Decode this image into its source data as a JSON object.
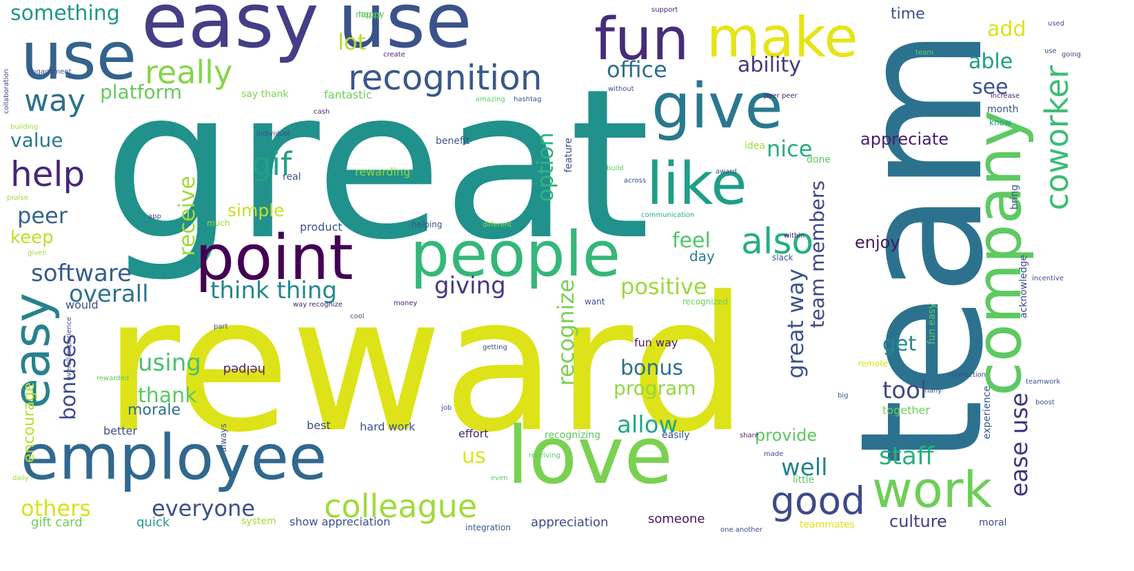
{
  "background": "#ffffff",
  "words": [
    {
      "text": "great",
      "color": "#21918c",
      "rotate": 0
    },
    {
      "text": "reward",
      "color": "#dde318",
      "rotate": 0
    },
    {
      "text": "team",
      "color": "#2c728e",
      "rotate": 90
    },
    {
      "text": "easy",
      "color": "#433e85",
      "rotate": 0
    },
    {
      "text": "use",
      "color": "#3b528b",
      "rotate": 0
    },
    {
      "text": "use",
      "color": "#33638d",
      "rotate": 0
    },
    {
      "text": "fun",
      "color": "#472c7a",
      "rotate": 0
    },
    {
      "text": "make",
      "color": "#e5e419",
      "rotate": 0
    },
    {
      "text": "give",
      "color": "#2a788e",
      "rotate": 0
    },
    {
      "text": "company",
      "color": "#5ec962",
      "rotate": 90
    },
    {
      "text": "people",
      "color": "#35b779",
      "rotate": 0
    },
    {
      "text": "point",
      "color": "#440154",
      "rotate": 0
    },
    {
      "text": "like",
      "color": "#1f9e89",
      "rotate": 0
    },
    {
      "text": "employee",
      "color": "#31688e",
      "rotate": 0
    },
    {
      "text": "love",
      "color": "#7ad151",
      "rotate": 0
    },
    {
      "text": "work",
      "color": "#6ece58",
      "rotate": 0
    },
    {
      "text": "easy",
      "color": "#26828e",
      "rotate": 90
    },
    {
      "text": "recognition",
      "color": "#38588c",
      "rotate": 0
    },
    {
      "text": "really",
      "color": "#86d549",
      "rotate": 0
    },
    {
      "text": "also",
      "color": "#28ae80",
      "rotate": 0
    },
    {
      "text": "good",
      "color": "#3e4a89",
      "rotate": 0
    },
    {
      "text": "colleague",
      "color": "#9fda3a",
      "rotate": 0
    },
    {
      "text": "coworker",
      "color": "#3dbc74",
      "rotate": 90
    },
    {
      "text": "help",
      "color": "#482677",
      "rotate": 0
    },
    {
      "text": "way",
      "color": "#2d708e",
      "rotate": 0
    },
    {
      "text": "gif",
      "color": "#1fa187",
      "rotate": 0
    },
    {
      "text": "staff",
      "color": "#29af7f",
      "rotate": 0
    },
    {
      "text": "ease use",
      "color": "#46337e",
      "rotate": 90
    },
    {
      "text": "something",
      "color": "#1f968b",
      "rotate": 0
    },
    {
      "text": "office",
      "color": "#2e6e8e",
      "rotate": 0
    },
    {
      "text": "ability",
      "color": "#453781",
      "rotate": 0
    },
    {
      "text": "add",
      "color": "#dde318",
      "rotate": 0
    },
    {
      "text": "able",
      "color": "#1e9c89",
      "rotate": 0
    },
    {
      "text": "see",
      "color": "#3b528b",
      "rotate": 0
    },
    {
      "text": "lot",
      "color": "#b5de2b",
      "rotate": 0
    },
    {
      "text": "platform",
      "color": "#65cb5e",
      "rotate": 0
    },
    {
      "text": "value",
      "color": "#2a788e",
      "rotate": 0
    },
    {
      "text": "nice",
      "color": "#25ac82",
      "rotate": 0
    },
    {
      "text": "appreciate",
      "color": "#481f70",
      "rotate": 0
    },
    {
      "text": "receive",
      "color": "#a0da39",
      "rotate": 90
    },
    {
      "text": "option",
      "color": "#2fb47c",
      "rotate": 90
    },
    {
      "text": "team members",
      "color": "#404588",
      "rotate": 90
    },
    {
      "text": "peer",
      "color": "#32648e",
      "rotate": 0
    },
    {
      "text": "keep",
      "color": "#bddf26",
      "rotate": 0
    },
    {
      "text": "feel",
      "color": "#52c569",
      "rotate": 0
    },
    {
      "text": "simple",
      "color": "#c8e020",
      "rotate": 0
    },
    {
      "text": "software",
      "color": "#365c8d",
      "rotate": 0
    },
    {
      "text": "overall",
      "color": "#2c738e",
      "rotate": 0
    },
    {
      "text": "think thing",
      "color": "#24878e",
      "rotate": 0
    },
    {
      "text": "giving",
      "color": "#453882",
      "rotate": 0
    },
    {
      "text": "positive",
      "color": "#9bd93c",
      "rotate": 0
    },
    {
      "text": "great way",
      "color": "#3a548c",
      "rotate": 90
    },
    {
      "text": "recognize",
      "color": "#7ad151",
      "rotate": 90
    },
    {
      "text": "enjoy",
      "color": "#481769",
      "rotate": 0
    },
    {
      "text": "day",
      "color": "#287c8e",
      "rotate": 0
    },
    {
      "text": "bonuses",
      "color": "#3f4889",
      "rotate": 90
    },
    {
      "text": "using",
      "color": "#4ac16d",
      "rotate": 0
    },
    {
      "text": "bonus",
      "color": "#2c718e",
      "rotate": 0
    },
    {
      "text": "get",
      "color": "#23888e",
      "rotate": 0
    },
    {
      "text": "encourage",
      "color": "#b8de29",
      "rotate": 90
    },
    {
      "text": "thank",
      "color": "#5ac864",
      "rotate": 0
    },
    {
      "text": "program",
      "color": "#8fd744",
      "rotate": 0
    },
    {
      "text": "tool",
      "color": "#3e4989",
      "rotate": 0
    },
    {
      "text": "morale",
      "color": "#2e6d8e",
      "rotate": 0
    },
    {
      "text": "allow",
      "color": "#22a785",
      "rotate": 0
    },
    {
      "text": "provide",
      "color": "#5cc863",
      "rotate": 0
    },
    {
      "text": "us",
      "color": "#dfe318",
      "rotate": 0
    },
    {
      "text": "well",
      "color": "#27808e",
      "rotate": 0
    },
    {
      "text": "others",
      "color": "#d8e219",
      "rotate": 0
    },
    {
      "text": "everyone",
      "color": "#3c4f8a",
      "rotate": 0
    },
    {
      "text": "culture",
      "color": "#423f85",
      "rotate": 0
    },
    {
      "text": "time",
      "color": "#3b518b",
      "rotate": 0
    },
    {
      "text": "gift card",
      "color": "#6ccd5a",
      "rotate": 0
    },
    {
      "text": "quick",
      "color": "#1f9a8a",
      "rotate": 0
    },
    {
      "text": "show appreciation",
      "color": "#3b528b",
      "rotate": 0
    },
    {
      "text": "appreciation",
      "color": "#3e4c8a",
      "rotate": 0
    },
    {
      "text": "someone",
      "color": "#471365",
      "rotate": 0
    },
    {
      "text": "say thank",
      "color": "#7fd34e",
      "rotate": 0
    },
    {
      "text": "fantastic",
      "color": "#6ece58",
      "rotate": 0
    },
    {
      "text": "benefit",
      "color": "#3a548c",
      "rotate": 0
    },
    {
      "text": "idea",
      "color": "#9bd93c",
      "rotate": 0
    },
    {
      "text": "done",
      "color": "#5ac864",
      "rotate": 0
    },
    {
      "text": "month",
      "color": "#3a548c",
      "rotate": 0
    },
    {
      "text": "know",
      "color": "#1f9e89",
      "rotate": 0
    },
    {
      "text": "rewarding",
      "color": "#8fd744",
      "rotate": 0
    },
    {
      "text": "real",
      "color": "#3b528b",
      "rotate": 0
    },
    {
      "text": "feature",
      "color": "#3b528b",
      "rotate": 90
    },
    {
      "text": "product",
      "color": "#3b528b",
      "rotate": 0
    },
    {
      "text": "helping",
      "color": "#3b528b",
      "rotate": 0
    },
    {
      "text": "different",
      "color": "#9bd93c",
      "rotate": 0
    },
    {
      "text": "communication",
      "color": "#27ad81",
      "rotate": 0
    },
    {
      "text": "bring",
      "color": "#3a548c",
      "rotate": 90
    },
    {
      "text": "acknowledge",
      "color": "#3e4c8a",
      "rotate": 90
    },
    {
      "text": "fun easy",
      "color": "#5ac864",
      "rotate": 90
    },
    {
      "text": "experience",
      "color": "#3a548c",
      "rotate": 90
    },
    {
      "text": "together",
      "color": "#6ece58",
      "rotate": 0
    },
    {
      "text": "fun way",
      "color": "#481f70",
      "rotate": 0
    },
    {
      "text": "helped",
      "color": "#481f70",
      "rotate": 180
    },
    {
      "text": "best",
      "color": "#3e4c8a",
      "rotate": 0
    },
    {
      "text": "hard work",
      "color": "#3a548c",
      "rotate": 0
    },
    {
      "text": "effort",
      "color": "#481f70",
      "rotate": 0
    },
    {
      "text": "recognizing",
      "color": "#5ac864",
      "rotate": 0
    },
    {
      "text": "easily",
      "color": "#3a548c",
      "rotate": 0
    },
    {
      "text": "better",
      "color": "#3e4c8a",
      "rotate": 0
    },
    {
      "text": "would",
      "color": "#3e4c8a",
      "rotate": 0
    },
    {
      "text": "system",
      "color": "#9bd93c",
      "rotate": 0
    },
    {
      "text": "integration",
      "color": "#3a548c",
      "rotate": 0
    },
    {
      "text": "teammates",
      "color": "#dde318",
      "rotate": 0
    },
    {
      "text": "moral",
      "color": "#3e4c8a",
      "rotate": 0
    },
    {
      "text": "little",
      "color": "#5ac864",
      "rotate": 0
    },
    {
      "text": "recognized",
      "color": "#6ece58",
      "rotate": 0
    },
    {
      "text": "slack",
      "color": "#3a548c",
      "rotate": 0
    },
    {
      "text": "want",
      "color": "#3e4c8a",
      "rotate": 0
    },
    {
      "text": "way recognize",
      "color": "#481f70",
      "rotate": 0
    },
    {
      "text": "amazing",
      "color": "#5ac864",
      "rotate": 0
    },
    {
      "text": "hashtag",
      "color": "#3e4c8a",
      "rotate": 0
    },
    {
      "text": "cash",
      "color": "#481f70",
      "rotate": 0
    },
    {
      "text": "individual",
      "color": "#3e4c8a",
      "rotate": 0
    },
    {
      "text": "engagement",
      "color": "#3e4c8a",
      "rotate": 0
    },
    {
      "text": "building",
      "color": "#9bd93c",
      "rotate": 0
    },
    {
      "text": "praise",
      "color": "#9bd93c",
      "rotate": 0
    },
    {
      "text": "happy",
      "color": "#5ac864",
      "rotate": 0
    },
    {
      "text": "support",
      "color": "#481f70",
      "rotate": 0
    },
    {
      "text": "used",
      "color": "#3e4c8a",
      "rotate": 0
    },
    {
      "text": "going",
      "color": "#3e4c8a",
      "rotate": 0
    },
    {
      "text": "create",
      "color": "#481f70",
      "rotate": 0
    },
    {
      "text": "peer peer",
      "color": "#481f70",
      "rotate": 0
    },
    {
      "text": "money",
      "color": "#481f70",
      "rotate": 0
    },
    {
      "text": "cool",
      "color": "#3e4c8a",
      "rotate": 0
    },
    {
      "text": "share",
      "color": "#481f70",
      "rotate": 0
    },
    {
      "text": "job",
      "color": "#3e4c8a",
      "rotate": 0
    },
    {
      "text": "big",
      "color": "#3a548c",
      "rotate": 0
    },
    {
      "text": "boost",
      "color": "#3a548c",
      "rotate": 0
    },
    {
      "text": "teamwork",
      "color": "#3a548c",
      "rotate": 0
    },
    {
      "text": "getting",
      "color": "#3e4c8a",
      "rotate": 0
    },
    {
      "text": "rewarded",
      "color": "#5ac864",
      "rotate": 0
    },
    {
      "text": "overall experience",
      "color": "#3e4c8a",
      "rotate": 90
    },
    {
      "text": "daily",
      "color": "#9bd93c",
      "rotate": 0
    },
    {
      "text": "one another",
      "color": "#3e4c8a",
      "rotate": 0
    },
    {
      "text": "made",
      "color": "#3e4c8a",
      "rotate": 0
    },
    {
      "text": "part",
      "color": "#3e4c8a",
      "rotate": 0
    },
    {
      "text": "even",
      "color": "#5ac864",
      "rotate": 0
    },
    {
      "text": "app",
      "color": "#3e4c8a",
      "rotate": 0
    },
    {
      "text": "much",
      "color": "#9bd93c",
      "rotate": 0
    },
    {
      "text": "always",
      "color": "#3a548c",
      "rotate": 90
    },
    {
      "text": "within",
      "color": "#481f70",
      "rotate": 0
    },
    {
      "text": "build",
      "color": "#5ac864",
      "rotate": 0
    },
    {
      "text": "across",
      "color": "#3e4c8a",
      "rotate": 0
    },
    {
      "text": "award",
      "color": "#3e4c8a",
      "rotate": 0
    },
    {
      "text": "without",
      "color": "#3e4c8a",
      "rotate": 0
    },
    {
      "text": "given",
      "color": "#9bd93c",
      "rotate": 0
    },
    {
      "text": "team",
      "color": "#6ece58",
      "rotate": 0
    },
    {
      "text": "collaboration",
      "color": "#3e4c8a",
      "rotate": 90
    },
    {
      "text": "connection",
      "color": "#3e4c8a",
      "rotate": 0
    },
    {
      "text": "receiving",
      "color": "#5ac864",
      "rotate": 0
    },
    {
      "text": "incentive",
      "color": "#3e4c8a",
      "rotate": 0
    },
    {
      "text": "increase",
      "color": "#481f70",
      "rotate": 0
    },
    {
      "text": "remote",
      "color": "#dde318",
      "rotate": 0
    },
    {
      "text": "many",
      "color": "#3e4c8a",
      "rotate": 0
    },
    {
      "text": "nappy",
      "color": "#5ac864",
      "rotate": 0
    },
    {
      "text": "use",
      "color": "#3e4c8a",
      "rotate": 0
    }
  ]
}
